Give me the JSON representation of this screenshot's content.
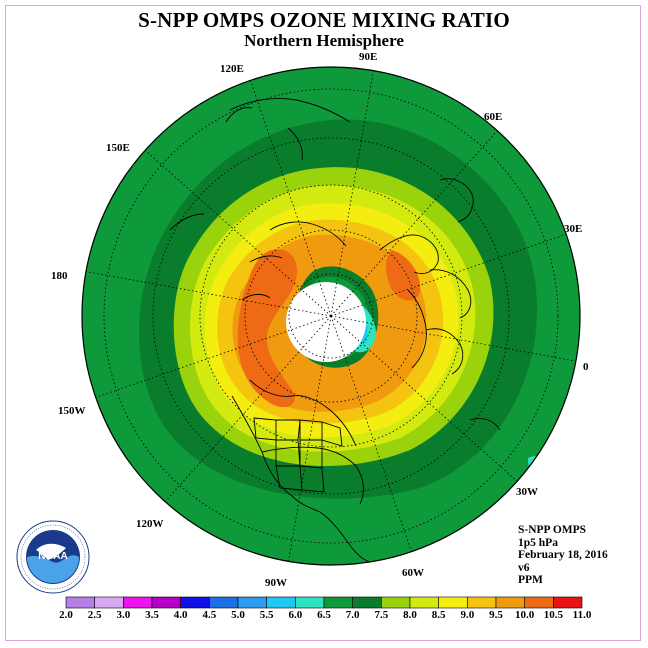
{
  "header": {
    "title": "S-NPP OMPS OZONE MIXING RATIO",
    "subtitle": "Northern Hemisphere"
  },
  "map": {
    "projection": "polar stereographic, north pole centered",
    "longitude_labels": [
      "90E",
      "60E",
      "30E",
      "0",
      "30W",
      "60W",
      "90W",
      "120W",
      "150W",
      "180",
      "150E",
      "120E"
    ],
    "field_levels_ppm_outer_to_inner": [
      6.5,
      7.0,
      7.5,
      8.0,
      8.5,
      9.0,
      9.5,
      9.0,
      5.5
    ]
  },
  "info": {
    "line1": "S-NPP OMPS",
    "line2": "1p5 hPa",
    "line3": "February 18, 2016",
    "line4": "v6",
    "line5": "PPM"
  },
  "logo": {
    "text": "NOAA",
    "ring_text": "NATIONAL OCEANIC AND ATMOSPHERIC ADMINISTRATION · U.S. DEPARTMENT OF COMMERCE"
  },
  "colorbar": {
    "labels": [
      "2.0",
      "2.5",
      "3.0",
      "3.5",
      "4.0",
      "4.5",
      "5.0",
      "5.5",
      "6.0",
      "6.5",
      "7.0",
      "7.5",
      "8.0",
      "8.5",
      "9.0",
      "9.5",
      "10.0",
      "10.5",
      "11.0"
    ],
    "colors": [
      "#b57fe8",
      "#d9a8f2",
      "#ee12ee",
      "#b400c8",
      "#1010e8",
      "#1d6fe6",
      "#2e9bf2",
      "#1ec8f0",
      "#2ee3c0",
      "#0e9a3a",
      "#0a7d2d",
      "#9ad30c",
      "#d3ea10",
      "#f4ee10",
      "#f4c410",
      "#f09a10",
      "#ee6a14",
      "#e81414",
      "#8a4a2a"
    ]
  }
}
